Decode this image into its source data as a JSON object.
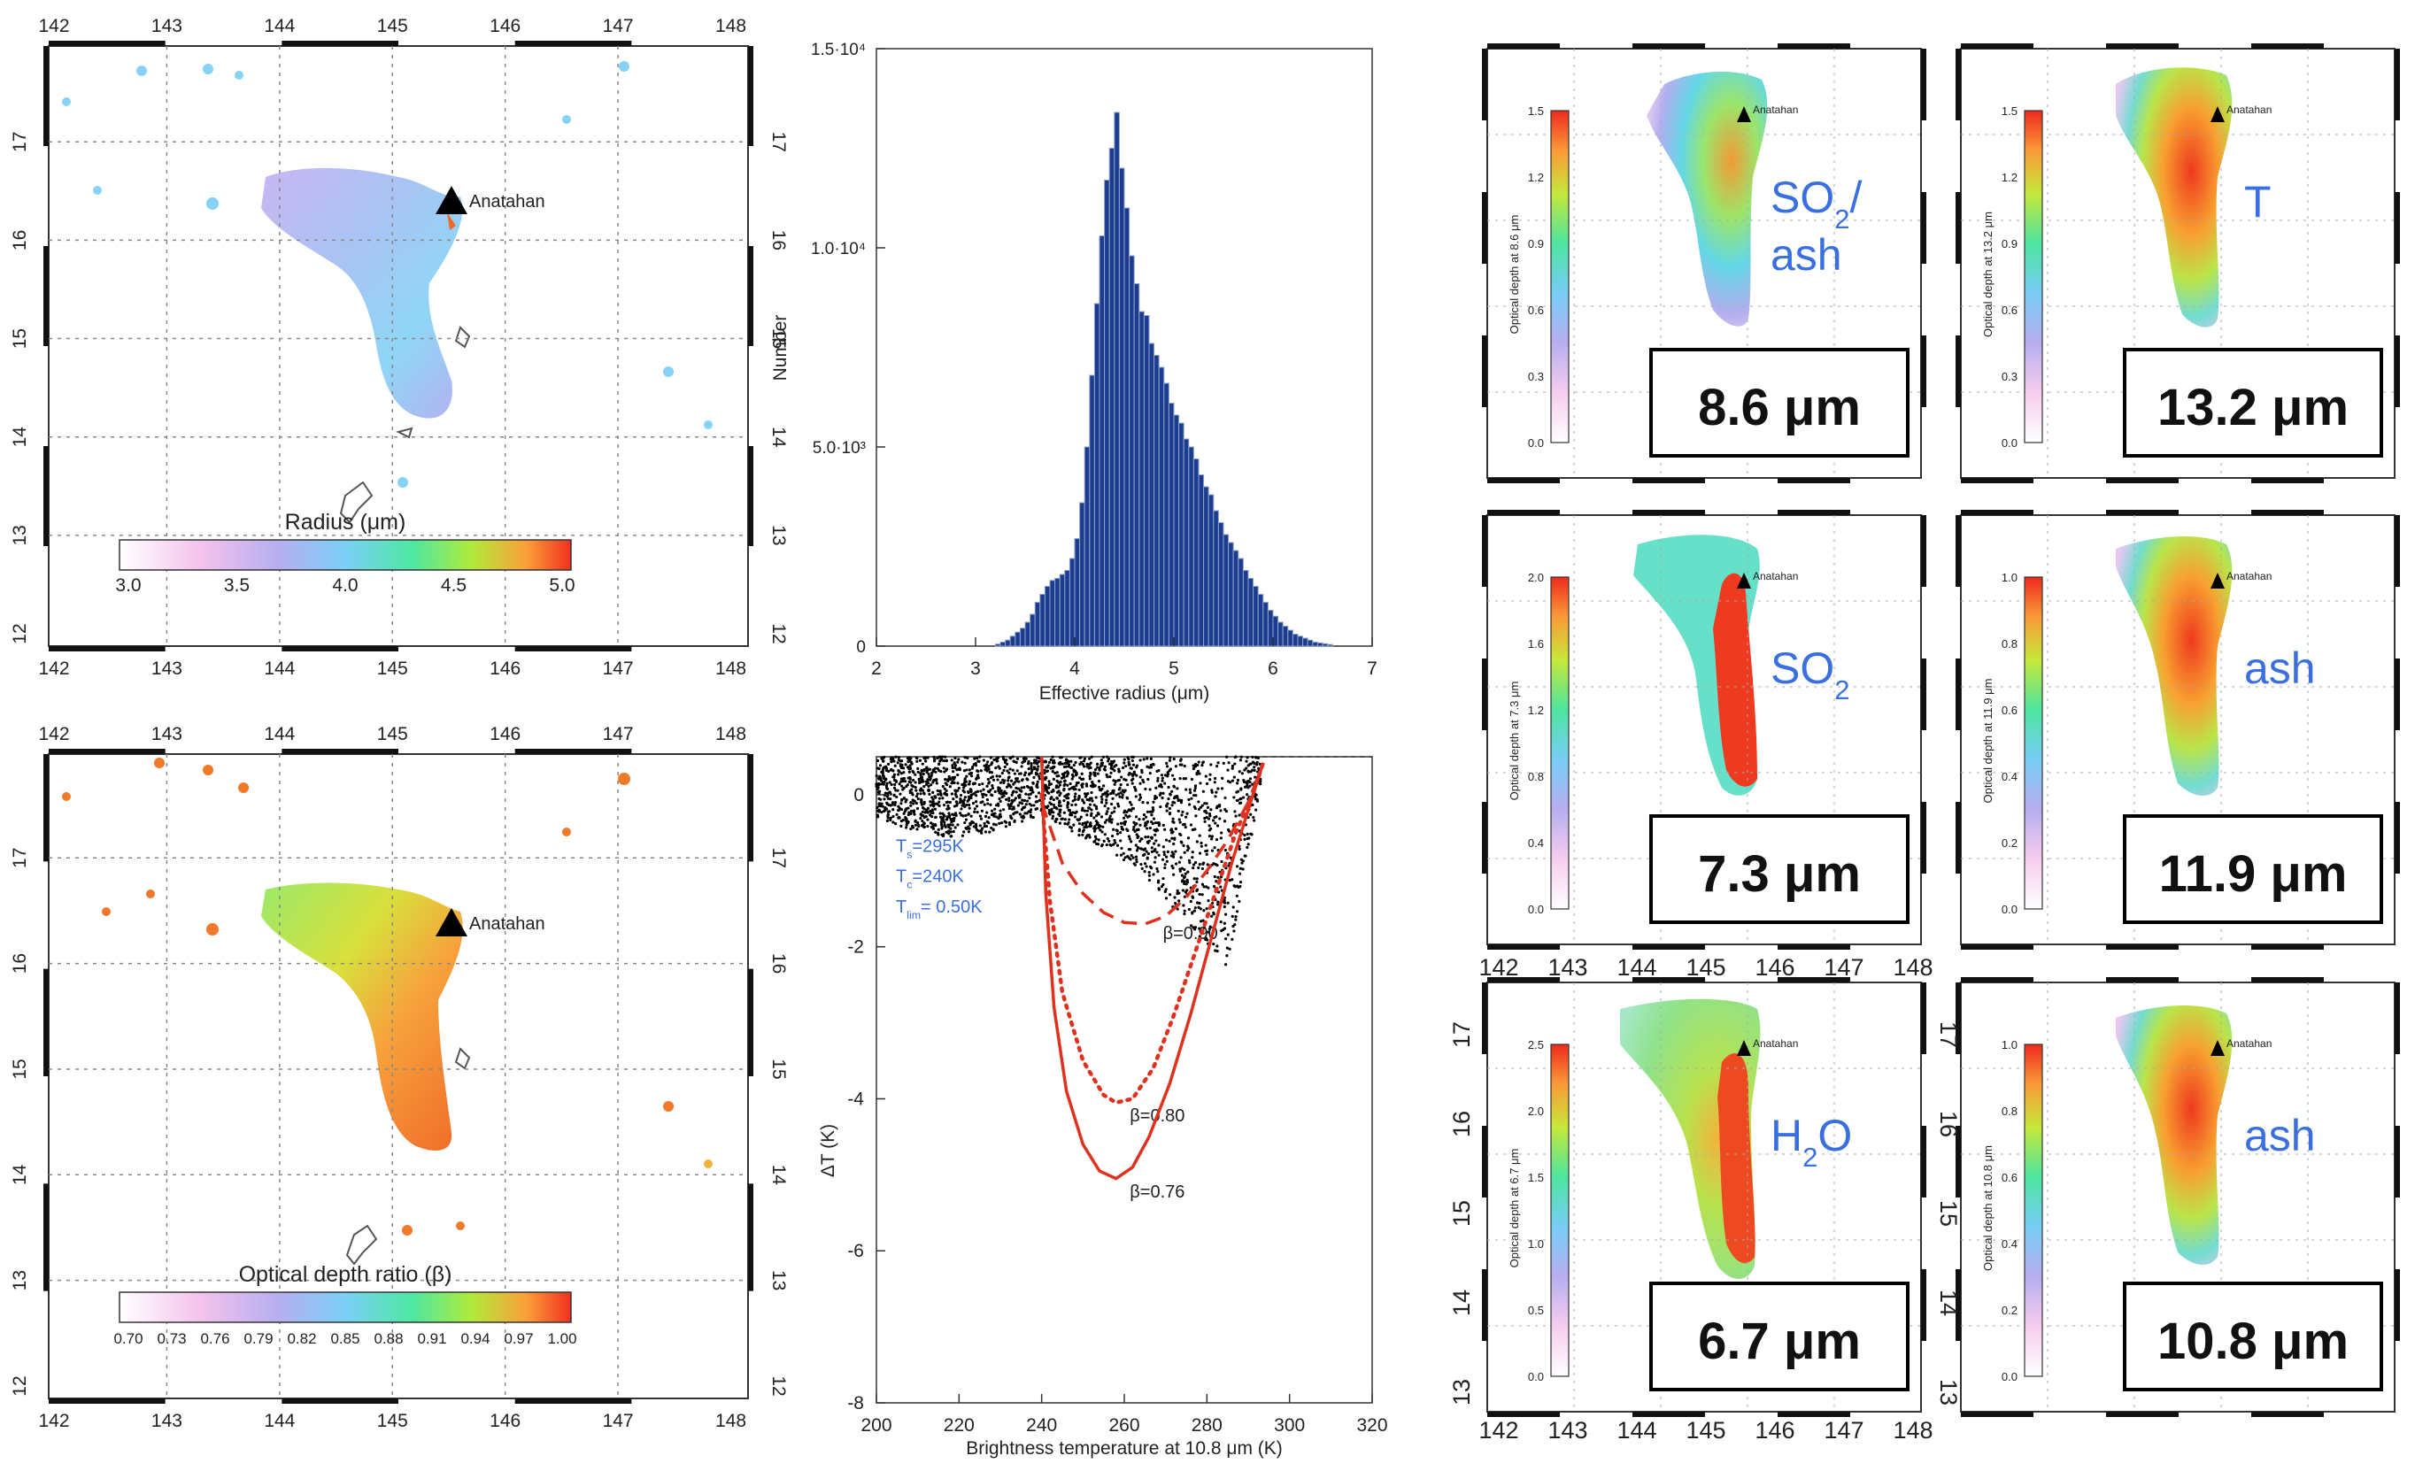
{
  "colors": {
    "ash_blue": "#3a6fe0",
    "hist_bar": "#1c3d8f",
    "curve_red": "#e0301e",
    "scatter": "#000000"
  },
  "volcano_label": "Anatahan",
  "maps": {
    "lon_ticks": [
      "142",
      "143",
      "144",
      "145",
      "146",
      "147",
      "148"
    ],
    "lat_ticks": [
      "12",
      "13",
      "14",
      "15",
      "16",
      "17"
    ],
    "radius": {
      "title": "Radius (μm)",
      "cbar_ticks": [
        "3.0",
        "3.5",
        "4.0",
        "4.5",
        "5.0"
      ]
    },
    "ratio": {
      "title": "Optical depth ratio (β)",
      "cbar_ticks": [
        "0.70",
        "0.73",
        "0.76",
        "0.79",
        "0.82",
        "0.85",
        "0.88",
        "0.91",
        "0.94",
        "0.97",
        "1.00"
      ]
    }
  },
  "panels": [
    {
      "wavelength": "8.6 μm",
      "ylabel": "Optical depth at 8.6 μm",
      "ticks": [
        "0.0",
        "0.3",
        "0.6",
        "0.9",
        "1.2",
        "1.5"
      ],
      "species_main": "SO",
      "species_sub": "2",
      "species_tail": "/",
      "species_line2": "ash"
    },
    {
      "wavelength": "13.2 μm",
      "ylabel": "Optical depth at 13.2 μm",
      "ticks": [
        "0.0",
        "0.3",
        "0.6",
        "0.9",
        "1.2",
        "1.5"
      ],
      "species_main": "T",
      "species_sub": "",
      "species_tail": "",
      "species_line2": ""
    },
    {
      "wavelength": "7.3 μm",
      "ylabel": "Optical depth at 7.3 μm",
      "ticks": [
        "0.0",
        "0.4",
        "0.8",
        "1.2",
        "1.6",
        "2.0"
      ],
      "species_main": "SO",
      "species_sub": "2",
      "species_tail": "",
      "species_line2": ""
    },
    {
      "wavelength": "11.9 μm",
      "ylabel": "Optical depth at 11.9 μm",
      "ticks": [
        "0.0",
        "0.2",
        "0.4",
        "0.6",
        "0.8",
        "1.0"
      ],
      "species_main": "ash",
      "species_sub": "",
      "species_tail": "",
      "species_line2": ""
    },
    {
      "wavelength": "6.7 μm",
      "ylabel": "Optical depth at 6.7 μm",
      "ticks": [
        "0.0",
        "0.5",
        "1.0",
        "1.5",
        "2.0",
        "2.5"
      ],
      "species_main": "H",
      "species_sub": "2",
      "species_tail": "O",
      "species_line2": ""
    },
    {
      "wavelength": "10.8 μm",
      "ylabel": "Optical depth at 10.8 μm",
      "ticks": [
        "0.0",
        "0.2",
        "0.4",
        "0.6",
        "0.8",
        "1.0"
      ],
      "species_main": "ash",
      "species_sub": "",
      "species_tail": "",
      "species_line2": ""
    }
  ],
  "chart_data": [
    {
      "type": "bar",
      "xlabel": "Effective radius (μm)",
      "ylabel": "Number",
      "xlim": [
        2,
        7
      ],
      "ylim": [
        0,
        15000
      ],
      "x_ticks": [
        "2",
        "3",
        "4",
        "5",
        "6",
        "7"
      ],
      "y_ticks": [
        "0",
        "5.0·10³",
        "1.0·10⁴",
        "1.5·10⁴"
      ],
      "bin_start": 3.2,
      "bin_width": 0.05,
      "values": [
        50,
        100,
        150,
        250,
        350,
        450,
        600,
        800,
        1100,
        1300,
        1500,
        1650,
        1700,
        1800,
        1900,
        2200,
        2700,
        3600,
        5000,
        6800,
        8600,
        10300,
        11700,
        12500,
        13400,
        12000,
        11000,
        9800,
        9100,
        8400,
        8300,
        7600,
        7300,
        7000,
        6600,
        6100,
        5800,
        5600,
        5200,
        5000,
        4700,
        4300,
        4000,
        3800,
        3400,
        3100,
        2800,
        2600,
        2400,
        2200,
        1900,
        1700,
        1500,
        1300,
        1100,
        900,
        750,
        600,
        500,
        400,
        300,
        250,
        200,
        150,
        100,
        80,
        60,
        40
      ]
    },
    {
      "type": "scatter",
      "xlabel": "Brightness temperature at 10.8 μm (K)",
      "ylabel": "ΔT (K)",
      "xlim": [
        200,
        320
      ],
      "ylim": [
        -8,
        0.5
      ],
      "x_ticks": [
        "200",
        "220",
        "240",
        "260",
        "280",
        "300",
        "320"
      ],
      "y_ticks": [
        "-8",
        "-6",
        "-4",
        "-2",
        "0"
      ],
      "params": {
        "ts": "T",
        "ts_sub": "s",
        "ts_val": "=295K",
        "tc": "T",
        "tc_sub": "c",
        "tc_val": "=240K",
        "tlim": "T",
        "tlim_sub": "lim",
        "tlim_val": "= 0.50K"
      },
      "series": [
        {
          "name": "β=0.90",
          "x": [
            240,
            245,
            250,
            255,
            260,
            265,
            270,
            275,
            280,
            285,
            290,
            293.5
          ],
          "y": [
            -0.1,
            -0.9,
            -1.3,
            -1.55,
            -1.68,
            -1.7,
            -1.6,
            -1.35,
            -1.0,
            -0.6,
            -0.1,
            0.4
          ]
        },
        {
          "name": "β=0.80",
          "x": [
            240,
            242,
            245,
            250,
            255,
            258,
            262,
            267,
            272,
            277,
            282,
            287,
            291,
            293.5
          ],
          "y": [
            0.0,
            -1.4,
            -2.6,
            -3.5,
            -3.95,
            -4.05,
            -4.0,
            -3.6,
            -2.9,
            -2.1,
            -1.3,
            -0.5,
            0.0,
            0.4
          ]
        },
        {
          "name": "β=0.76",
          "x": [
            240,
            241,
            243,
            246,
            250,
            254,
            258,
            262,
            266,
            271,
            276,
            281,
            286,
            290,
            293.5
          ],
          "y": [
            0.5,
            -1.3,
            -2.8,
            -3.9,
            -4.6,
            -4.95,
            -5.05,
            -4.9,
            -4.5,
            -3.8,
            -2.9,
            -1.9,
            -0.9,
            -0.2,
            0.4
          ]
        }
      ]
    }
  ]
}
